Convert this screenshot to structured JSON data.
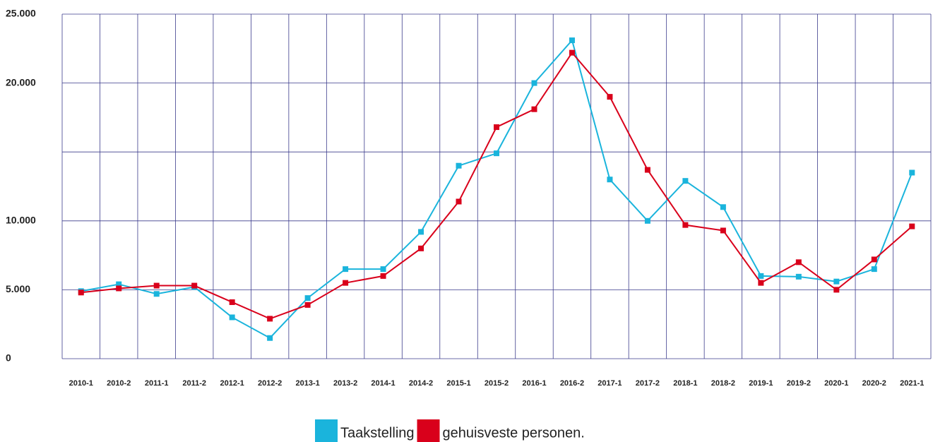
{
  "chart_data": {
    "type": "line",
    "categories": [
      "2010-1",
      "2010-2",
      "2011-1",
      "2011-2",
      "2012-1",
      "2012-2",
      "2013-1",
      "2013-2",
      "2014-1",
      "2014-2",
      "2015-1",
      "2015-2",
      "2016-1",
      "2016-2",
      "2017-1",
      "2017-2",
      "2018-1",
      "2018-2",
      "2019-1",
      "2019-2",
      "2020-1",
      "2020-2",
      "2021-1"
    ],
    "series": [
      {
        "name": "Taakstelling",
        "color": "#1ab4dc",
        "values": [
          4900,
          5400,
          4700,
          5200,
          3000,
          1500,
          4400,
          6500,
          6500,
          9200,
          14000,
          14900,
          20000,
          23100,
          13000,
          10000,
          12900,
          11000,
          6000,
          5950,
          5600,
          6500,
          13500
        ]
      },
      {
        "name": "gehuisveste personen.",
        "color": "#d9001b",
        "values": [
          4800,
          5100,
          5300,
          5300,
          4100,
          2900,
          3900,
          5500,
          6000,
          8000,
          11400,
          16800,
          18100,
          22200,
          19000,
          13700,
          9700,
          9300,
          5500,
          7000,
          5000,
          7200,
          9600
        ]
      }
    ],
    "ylim": [
      0,
      25000
    ],
    "yticks": [
      {
        "value": 0,
        "label": "0"
      },
      {
        "value": 5000,
        "label": "5.000"
      },
      {
        "value": 10000,
        "label": "10.000"
      },
      {
        "value": 20000,
        "label": "20.000"
      },
      {
        "value": 25000,
        "label": "25.000"
      }
    ],
    "ygrid": [
      0,
      5000,
      10000,
      15000,
      20000,
      25000
    ],
    "grid": true,
    "legend": "bottom"
  }
}
